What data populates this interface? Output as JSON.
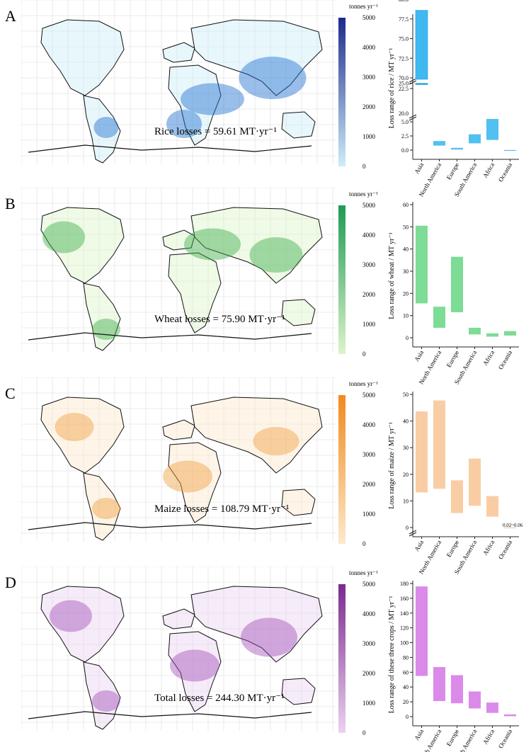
{
  "panels": [
    {
      "letter": "A",
      "unit": "tonnes yr⁻¹",
      "colorbar": {
        "ticks": [
          "0",
          "1000",
          "2000",
          "3000",
          "4000",
          "5000"
        ],
        "low": "#cdeef8",
        "high": "#1c2a8c"
      },
      "map_label": "Rice losses = 59.61 MT·yr⁻¹",
      "hotspot_color": "#1f6fd0",
      "chart_data": {
        "type": "bar",
        "categories": [
          "Asia",
          "North America",
          "Europe",
          "South America",
          "Africa",
          "Oceania"
        ],
        "ylabel": "Loss range of rice / MT yr⁻¹",
        "broken_axis": true,
        "lower_ticks": [
          "0.0",
          "2.5",
          "5.0",
          "20.0"
        ],
        "upper_ticks": [
          "22.5",
          "25.0",
          "70.0",
          "72.5",
          "75.0",
          "77.5",
          "80.0"
        ],
        "ranges": [
          [
            24.3,
            78.6
          ],
          [
            0.8,
            1.6
          ],
          [
            0.1,
            0.4
          ],
          [
            1.2,
            2.8
          ],
          [
            1.8,
            5.5
          ],
          [
            0.0,
            0.02
          ]
        ],
        "bar_color": "#3fb9f0"
      }
    },
    {
      "letter": "B",
      "unit": "tonnes yr⁻¹",
      "colorbar": {
        "ticks": [
          "0",
          "1000",
          "2000",
          "3000",
          "4000",
          "5000"
        ],
        "low": "#dcf4c9",
        "high": "#1f9a55"
      },
      "map_label": "Wheat losses = 75.90 MT·yr⁻¹",
      "hotspot_color": "#3fae4a",
      "chart_data": {
        "type": "bar",
        "categories": [
          "Asia",
          "North America",
          "Europe",
          "South America",
          "Africa",
          "Oceania"
        ],
        "ylabel": "Loss range of wheat / MT yr⁻¹",
        "ylim": [
          0,
          60
        ],
        "yticks": [
          "0",
          "10",
          "20",
          "30",
          "40",
          "50",
          "60"
        ],
        "ranges": [
          [
            15.5,
            50.5
          ],
          [
            4.5,
            14.0
          ],
          [
            11.5,
            36.5
          ],
          [
            1.5,
            4.5
          ],
          [
            0.5,
            2.0
          ],
          [
            1.0,
            3.0
          ]
        ],
        "bar_color": "#6fd88a"
      }
    },
    {
      "letter": "C",
      "unit": "tonnes yr⁻¹",
      "colorbar": {
        "ticks": [
          "0",
          "1000",
          "2000",
          "3000",
          "4000",
          "5000"
        ],
        "low": "#fde9cc",
        "high": "#f28a1e"
      },
      "map_label": "Maize losses = 108.79 MT·yr⁻¹",
      "hotspot_color": "#f0a040",
      "chart_data": {
        "type": "bar",
        "categories": [
          "Asia",
          "North America",
          "Europe",
          "South America",
          "Africa",
          "Oceania"
        ],
        "ylabel": "Loss range of maize / MT yr⁻¹",
        "ylim": [
          0,
          55
        ],
        "yticks": [
          "0",
          "10",
          "20",
          "30",
          "40",
          "50"
        ],
        "ranges": [
          [
            14.5,
            48.0
          ],
          [
            16.0,
            52.5
          ],
          [
            6.0,
            19.5
          ],
          [
            9.0,
            28.5
          ],
          [
            4.5,
            13.0
          ],
          [
            0.02,
            0.06
          ]
        ],
        "annotation": "0.02~0.06",
        "bar_color": "#f8c89a"
      }
    },
    {
      "letter": "D",
      "unit": "tonnes yr⁻¹",
      "colorbar": {
        "ticks": [
          "0",
          "1000",
          "2000",
          "3000",
          "4000",
          "5000"
        ],
        "low": "#ecd2f0",
        "high": "#7a2a8e"
      },
      "map_label": "Total losses = 244.30 MT·yr⁻¹",
      "hotspot_color": "#a14fbb",
      "chart_data": {
        "type": "bar",
        "categories": [
          "Asia",
          "North America",
          "Europe",
          "South America",
          "Africa",
          "Oceania"
        ],
        "ylabel": "Loss range of these three crops / MT yr⁻¹",
        "ylim": [
          0,
          180
        ],
        "yticks": [
          "0",
          "20",
          "40",
          "60",
          "80",
          "100",
          "120",
          "140",
          "160",
          "180"
        ],
        "ranges": [
          [
            55,
            176
          ],
          [
            21,
            67
          ],
          [
            18,
            56
          ],
          [
            11,
            34
          ],
          [
            5,
            19
          ],
          [
            0.5,
            3
          ]
        ],
        "bar_color": "#d77de8"
      }
    }
  ]
}
